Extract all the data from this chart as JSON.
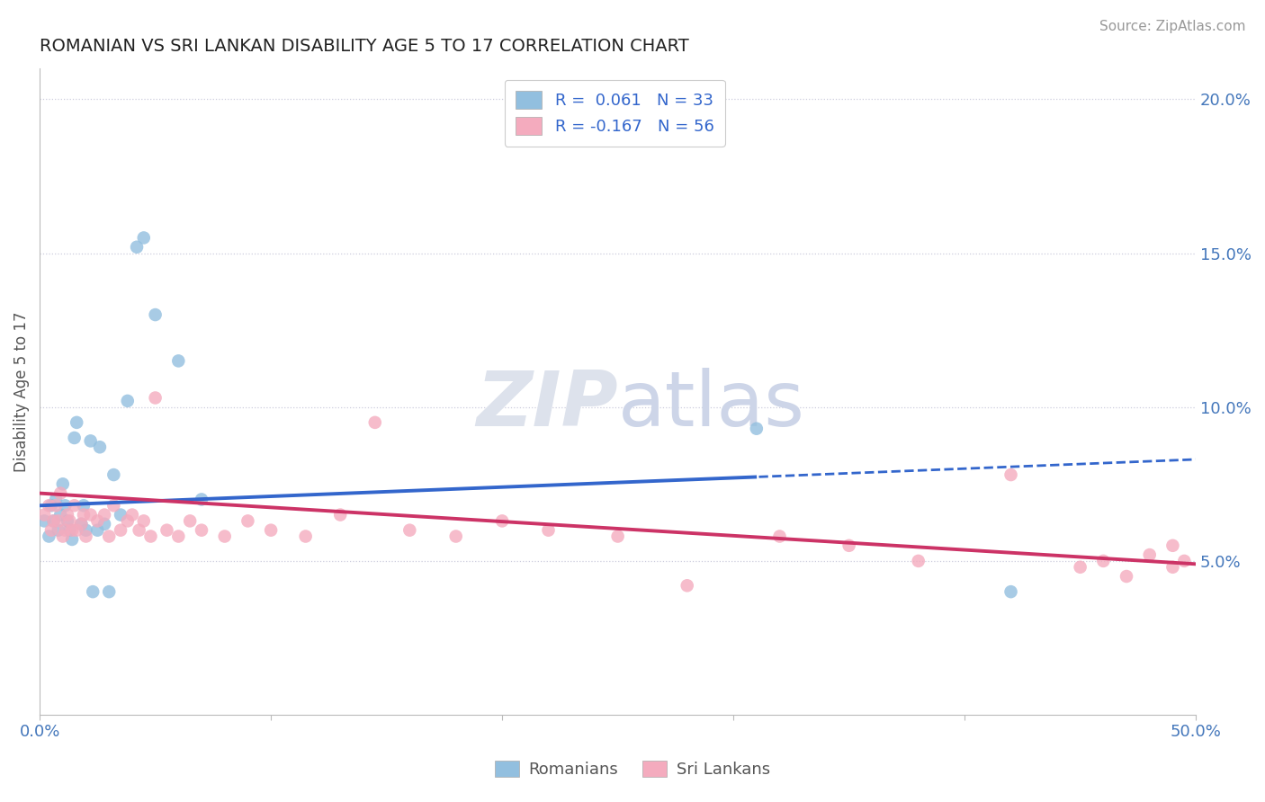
{
  "title": "ROMANIAN VS SRI LANKAN DISABILITY AGE 5 TO 17 CORRELATION CHART",
  "source": "Source: ZipAtlas.com",
  "ylabel": "Disability Age 5 to 17",
  "xlim": [
    0.0,
    0.5
  ],
  "ylim": [
    0.0,
    0.21
  ],
  "ytick_vals": [
    0.05,
    0.1,
    0.15,
    0.2
  ],
  "ytick_labels": [
    "5.0%",
    "10.0%",
    "15.0%",
    "20.0%"
  ],
  "xtick_vals": [
    0.0,
    0.1,
    0.2,
    0.3,
    0.4,
    0.5
  ],
  "xtick_labels": [
    "0.0%",
    "",
    "",
    "",
    "",
    "50.0%"
  ],
  "color_romanian": "#92bfdf",
  "color_srilanka": "#f4abbe",
  "line_color_romanian": "#3366cc",
  "line_color_srilanka": "#cc3366",
  "background_color": "#ffffff",
  "grid_color": "#ccccdd",
  "romanians_x": [
    0.002,
    0.004,
    0.005,
    0.006,
    0.007,
    0.008,
    0.009,
    0.01,
    0.011,
    0.012,
    0.013,
    0.014,
    0.015,
    0.016,
    0.018,
    0.019,
    0.02,
    0.022,
    0.023,
    0.025,
    0.026,
    0.028,
    0.03,
    0.032,
    0.035,
    0.038,
    0.042,
    0.045,
    0.05,
    0.06,
    0.07,
    0.31,
    0.42
  ],
  "romanians_y": [
    0.063,
    0.058,
    0.068,
    0.063,
    0.07,
    0.06,
    0.065,
    0.075,
    0.068,
    0.063,
    0.06,
    0.057,
    0.09,
    0.095,
    0.062,
    0.068,
    0.06,
    0.089,
    0.04,
    0.06,
    0.087,
    0.062,
    0.04,
    0.078,
    0.065,
    0.102,
    0.152,
    0.155,
    0.13,
    0.115,
    0.07,
    0.093,
    0.04
  ],
  "srilankans_x": [
    0.002,
    0.004,
    0.005,
    0.006,
    0.007,
    0.008,
    0.009,
    0.01,
    0.011,
    0.012,
    0.013,
    0.014,
    0.015,
    0.016,
    0.018,
    0.019,
    0.02,
    0.022,
    0.025,
    0.028,
    0.03,
    0.032,
    0.035,
    0.038,
    0.04,
    0.043,
    0.045,
    0.048,
    0.05,
    0.055,
    0.06,
    0.065,
    0.07,
    0.08,
    0.09,
    0.1,
    0.115,
    0.13,
    0.145,
    0.16,
    0.18,
    0.2,
    0.22,
    0.25,
    0.28,
    0.32,
    0.35,
    0.38,
    0.42,
    0.45,
    0.46,
    0.47,
    0.48,
    0.49,
    0.49,
    0.495
  ],
  "srilankans_y": [
    0.065,
    0.068,
    0.06,
    0.063,
    0.068,
    0.063,
    0.072,
    0.058,
    0.06,
    0.065,
    0.063,
    0.06,
    0.068,
    0.06,
    0.062,
    0.065,
    0.058,
    0.065,
    0.063,
    0.065,
    0.058,
    0.068,
    0.06,
    0.063,
    0.065,
    0.06,
    0.063,
    0.058,
    0.103,
    0.06,
    0.058,
    0.063,
    0.06,
    0.058,
    0.063,
    0.06,
    0.058,
    0.065,
    0.095,
    0.06,
    0.058,
    0.063,
    0.06,
    0.058,
    0.042,
    0.058,
    0.055,
    0.05,
    0.078,
    0.048,
    0.05,
    0.045,
    0.052,
    0.048,
    0.055,
    0.05
  ]
}
